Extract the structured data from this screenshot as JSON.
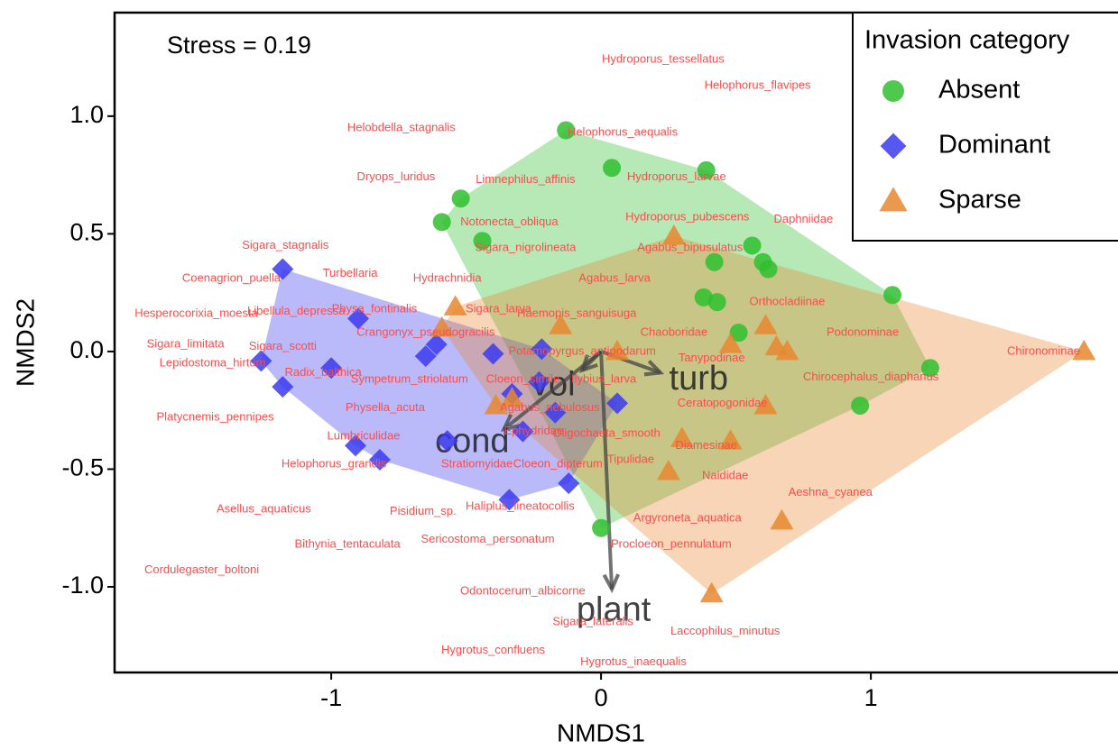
{
  "chart_data": {
    "type": "scatter",
    "annotation": "Stress = 0.19",
    "x_label": "NMDS1",
    "y_label": "NMDS2",
    "xlim": [
      -1.803,
      1.916
    ],
    "ylim": [
      -1.364,
      1.44
    ],
    "xticks": [
      -1,
      0,
      1
    ],
    "yticks": [
      {
        "value": -1,
        "label": "-1.0"
      },
      {
        "value": -0.5,
        "label": "-0.5"
      },
      {
        "value": 0,
        "label": "0.0"
      },
      {
        "value": 0.5,
        "label": "0.5"
      },
      {
        "value": 1,
        "label": "1.0"
      }
    ],
    "legend_title": "Invasion category",
    "legend_position": "top-right",
    "series": [
      {
        "name": "Absent",
        "color": "#2fbf2f",
        "shape": "circle",
        "x": [
          -0.13,
          0.04,
          0.39,
          -0.52,
          -0.59,
          -0.44,
          0.56,
          0.6,
          0.42,
          0.62,
          0.38,
          0.43,
          1.08,
          0.51,
          1.22,
          0.96,
          0.0
        ],
        "values": [
          0.94,
          0.78,
          0.77,
          0.65,
          0.55,
          0.47,
          0.45,
          0.38,
          0.38,
          0.35,
          0.23,
          0.21,
          0.24,
          0.08,
          -0.07,
          -0.23,
          -0.75
        ]
      },
      {
        "name": "Dominant",
        "color": "#3a3af0",
        "shape": "diamond",
        "x": [
          -1.18,
          -0.9,
          -0.61,
          -1.26,
          -1.0,
          -1.18,
          -0.65,
          -0.4,
          -0.22,
          -0.23,
          -0.17,
          0.06,
          -0.29,
          -0.33,
          -0.91,
          -0.82,
          -0.57,
          -0.12,
          -0.34
        ],
        "values": [
          0.35,
          0.14,
          0.03,
          -0.04,
          -0.07,
          -0.15,
          -0.02,
          -0.01,
          0.01,
          -0.13,
          -0.26,
          -0.22,
          -0.34,
          -0.18,
          -0.4,
          -0.46,
          -0.38,
          -0.56,
          -0.63
        ]
      },
      {
        "name": "Sparse",
        "color": "#e8872f",
        "shape": "triangle",
        "x": [
          0.27,
          -0.54,
          -0.59,
          -0.15,
          0.61,
          0.06,
          0.65,
          0.69,
          0.48,
          1.79,
          -0.33,
          -0.39,
          0.61,
          0.3,
          0.48,
          0.25,
          0.67,
          0.41
        ],
        "values": [
          0.49,
          0.19,
          0.1,
          0.11,
          0.11,
          0.0,
          0.02,
          0.0,
          0.03,
          0.0,
          -0.2,
          -0.23,
          -0.23,
          -0.37,
          -0.38,
          -0.51,
          -0.72,
          -1.03
        ]
      }
    ],
    "species": [
      {
        "label": "Hydroporus_tessellatus",
        "x": 0.23,
        "y": 1.24
      },
      {
        "label": "Helophorus_flavipes",
        "x": 0.58,
        "y": 1.13
      },
      {
        "label": "Helobdella_stagnalis",
        "x": -0.74,
        "y": 0.95
      },
      {
        "label": "Helophorus_aequalis",
        "x": 0.08,
        "y": 0.93
      },
      {
        "label": "Dryops_luridus",
        "x": -0.76,
        "y": 0.74
      },
      {
        "label": "Limnephilus_affinis",
        "x": -0.28,
        "y": 0.73
      },
      {
        "label": "Hydroporus_larvae",
        "x": 0.28,
        "y": 0.74
      },
      {
        "label": "Notonecta_obliqua",
        "x": -0.34,
        "y": 0.55
      },
      {
        "label": "Hydroporus_pubescens",
        "x": 0.32,
        "y": 0.57
      },
      {
        "label": "Daphniidae",
        "x": 0.75,
        "y": 0.56
      },
      {
        "label": "Sigara_nigrolineata",
        "x": -0.28,
        "y": 0.44
      },
      {
        "label": "Agabus_bipusulatus",
        "x": 0.33,
        "y": 0.44
      },
      {
        "label": "Sigara_stagnalis",
        "x": -1.17,
        "y": 0.45
      },
      {
        "label": "Coenagrion_puella",
        "x": -1.37,
        "y": 0.31
      },
      {
        "label": "Turbellaria",
        "x": -0.93,
        "y": 0.33
      },
      {
        "label": "Hydrachnidia",
        "x": -0.57,
        "y": 0.31
      },
      {
        "label": "Agabus_larva",
        "x": 0.05,
        "y": 0.31
      },
      {
        "label": "Hesperocorixia_moesta",
        "x": -1.5,
        "y": 0.16
      },
      {
        "label": "Libellula_depressa",
        "x": -1.13,
        "y": 0.17
      },
      {
        "label": "Physa_fontinalis",
        "x": -0.84,
        "y": 0.18
      },
      {
        "label": "Sigara_larva",
        "x": -0.38,
        "y": 0.18
      },
      {
        "label": "Haemopis_sanguisuga",
        "x": -0.09,
        "y": 0.16
      },
      {
        "label": "Orthocladiinae",
        "x": 0.69,
        "y": 0.21
      },
      {
        "label": "Crangonyx_pseudogracilis",
        "x": -0.65,
        "y": 0.08
      },
      {
        "label": "Podonominae",
        "x": 0.97,
        "y": 0.08
      },
      {
        "label": "Chironominae",
        "x": 1.64,
        "y": 0.0
      },
      {
        "label": "Sigara_limitata",
        "x": -1.54,
        "y": 0.03
      },
      {
        "label": "Sigara_scotti",
        "x": -1.18,
        "y": 0.02
      },
      {
        "label": "Potamopyrgus_antipodarum",
        "x": -0.07,
        "y": 0.0
      },
      {
        "label": "Chaoboridae",
        "x": 0.27,
        "y": 0.08
      },
      {
        "label": "Tanypodinae",
        "x": 0.41,
        "y": -0.03
      },
      {
        "label": "Lepidostoma_hirtum",
        "x": -1.44,
        "y": -0.05
      },
      {
        "label": "Radix_balthica",
        "x": -1.03,
        "y": -0.09
      },
      {
        "label": "Sympetrum_striolatum",
        "x": -0.71,
        "y": -0.12
      },
      {
        "label": "Cloeon_simile",
        "x": -0.29,
        "y": -0.12
      },
      {
        "label": "Ilybius_larva",
        "x": 0.01,
        "y": -0.12
      },
      {
        "label": "Chirocephalus_diaphanus",
        "x": 1.0,
        "y": -0.11
      },
      {
        "label": "Platycnemis_pennipes",
        "x": -1.43,
        "y": -0.28
      },
      {
        "label": "Physella_acuta",
        "x": -0.8,
        "y": -0.24
      },
      {
        "label": "Agabus_nebulosus",
        "x": -0.19,
        "y": -0.24
      },
      {
        "label": "Ceratopogonidae",
        "x": 0.45,
        "y": -0.22
      },
      {
        "label": "Ephydridae",
        "x": -0.25,
        "y": -0.34
      },
      {
        "label": "Oligochaeta_smooth",
        "x": 0.02,
        "y": -0.35
      },
      {
        "label": "Lumbriculidae",
        "x": -0.88,
        "y": -0.36
      },
      {
        "label": "Diamesinae",
        "x": 0.39,
        "y": -0.4
      },
      {
        "label": "Helophorus_grandis",
        "x": -0.99,
        "y": -0.48
      },
      {
        "label": "Stratiomyidae",
        "x": -0.46,
        "y": -0.48
      },
      {
        "label": "Cloeon_dipterum",
        "x": -0.16,
        "y": -0.48
      },
      {
        "label": "Tipulidae",
        "x": 0.11,
        "y": -0.46
      },
      {
        "label": "Naididae",
        "x": 0.46,
        "y": -0.53
      },
      {
        "label": "Aeshna_cyanea",
        "x": 0.85,
        "y": -0.6
      },
      {
        "label": "Asellus_aquaticus",
        "x": -1.25,
        "y": -0.67
      },
      {
        "label": "Pisidium_sp.",
        "x": -0.66,
        "y": -0.68
      },
      {
        "label": "Haliplus_lineatocollis",
        "x": -0.3,
        "y": -0.66
      },
      {
        "label": "Argyroneta_aquatica",
        "x": 0.32,
        "y": -0.71
      },
      {
        "label": "Bithynia_tentaculata",
        "x": -0.94,
        "y": -0.82
      },
      {
        "label": "Sericostoma_personatum",
        "x": -0.42,
        "y": -0.8
      },
      {
        "label": "Procloeon_pennulatum",
        "x": 0.26,
        "y": -0.82
      },
      {
        "label": "Cordulegaster_boltoni",
        "x": -1.48,
        "y": -0.93
      },
      {
        "label": "Odontocerum_albicorne",
        "x": -0.29,
        "y": -1.02
      },
      {
        "label": "Sigara_lateralis",
        "x": -0.03,
        "y": -1.15
      },
      {
        "label": "Laccophilus_minutus",
        "x": 0.46,
        "y": -1.19
      },
      {
        "label": "Hygrotus_confluens",
        "x": -0.4,
        "y": -1.27
      },
      {
        "label": "Hygrotus_inaequalis",
        "x": 0.12,
        "y": -1.32
      }
    ],
    "vectors": [
      {
        "name": "turb",
        "x": 0.22,
        "y": -0.09
      },
      {
        "name": "vol",
        "x": -0.07,
        "y": -0.08
      },
      {
        "name": "cond",
        "x": -0.36,
        "y": -0.33
      },
      {
        "name": "plant",
        "x": 0.04,
        "y": -1.01
      }
    ]
  }
}
